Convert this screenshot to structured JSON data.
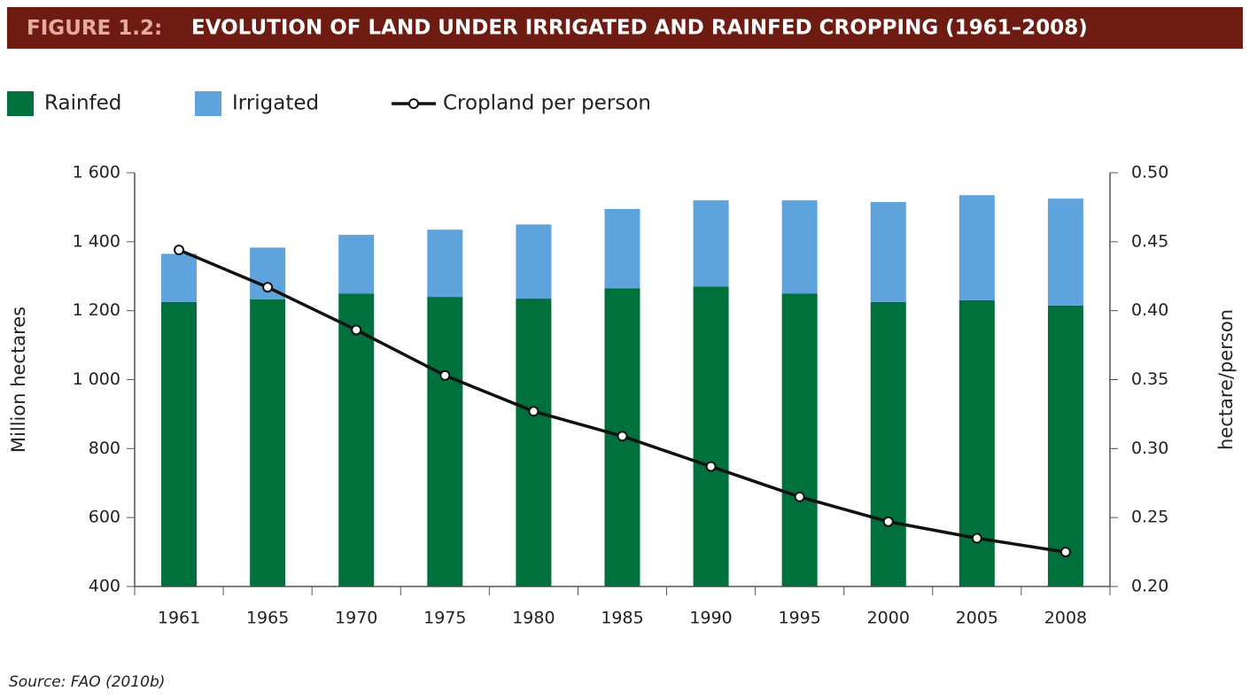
{
  "chart_data": {
    "type": "stacked-bar-line",
    "label": "FIGURE 1.2:",
    "title": "EVOLUTION OF LAND UNDER IRRIGATED AND RAINFED CROPPING (1961–2008)",
    "categories": [
      "1961",
      "1965",
      "1970",
      "1975",
      "1980",
      "1985",
      "1990",
      "1995",
      "2000",
      "2005",
      "2008"
    ],
    "series": [
      {
        "name": "Rainfed",
        "color": "#00703c",
        "values": [
          1225,
          1233,
          1250,
          1240,
          1235,
          1265,
          1270,
          1250,
          1225,
          1230,
          1215
        ]
      },
      {
        "name": "Irrigated",
        "color": "#5fa3dc",
        "values": [
          140,
          150,
          170,
          195,
          215,
          230,
          250,
          270,
          290,
          305,
          310
        ]
      },
      {
        "name": "Cropland per person",
        "color": "#111111",
        "axis": "y2",
        "values": [
          0.444,
          0.417,
          0.386,
          0.353,
          0.327,
          0.309,
          0.287,
          0.265,
          0.247,
          0.235,
          0.225
        ]
      }
    ],
    "ylabel": "Million hectares",
    "y2label": "hectare/person",
    "ylim": [
      400,
      1600
    ],
    "yticks": [
      400,
      600,
      800,
      {
        "value": 1000,
        "label": "1 000"
      },
      {
        "value": 1200,
        "label": "1 200"
      },
      {
        "value": 1400,
        "label": "1 400"
      },
      {
        "value": 1600,
        "label": "1 600"
      }
    ],
    "y2lim": [
      0.2,
      0.5
    ],
    "y2ticks": [
      {
        "value": 0.2,
        "label": "0.20"
      },
      0.25,
      {
        "value": 0.3,
        "label": "0.30"
      },
      0.35,
      {
        "value": 0.4,
        "label": "0.40"
      },
      0.45,
      {
        "value": 0.5,
        "label": "0.50"
      }
    ],
    "source": "Source: FAO (2010b)"
  }
}
